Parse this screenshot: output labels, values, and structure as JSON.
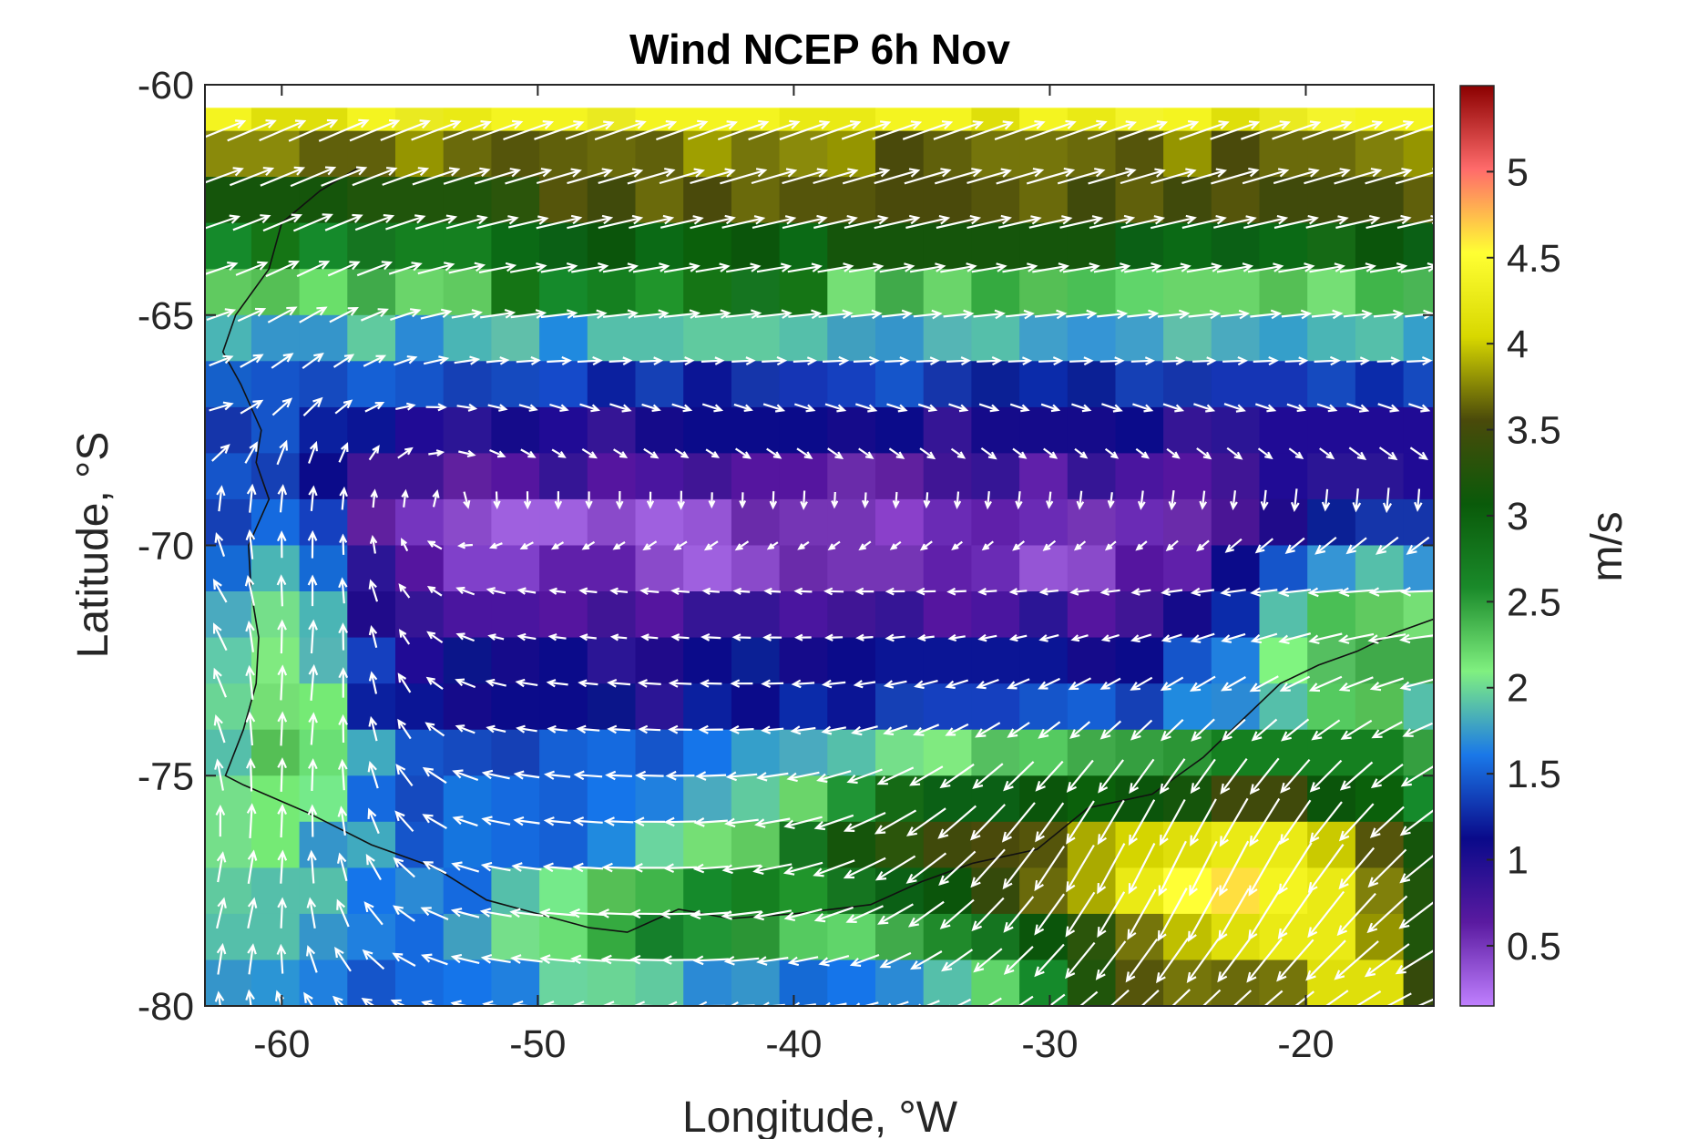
{
  "chart_data": {
    "type": "heatmap",
    "title": "Wind NCEP 6h Nov",
    "xlabel": "Longitude, °W",
    "ylabel": "Latitude, °S",
    "colorbar_label": "m/s",
    "xlim": [
      -63,
      -15
    ],
    "ylim": [
      -80,
      -60
    ],
    "xticks": [
      -60,
      -50,
      -40,
      -30,
      -20
    ],
    "yticks": [
      -60,
      -65,
      -70,
      -75,
      -80
    ],
    "colorbar_range": [
      0.15,
      5.5
    ],
    "colorbar_ticks": [
      0.5,
      1,
      1.5,
      2,
      2.5,
      3,
      3.5,
      4,
      4.5,
      5
    ],
    "grid": false,
    "colormap": [
      "#c080ff",
      "#5a1aa0",
      "#0a0a8a",
      "#1a78e8",
      "#80f080",
      "#1a8a2a",
      "#0a5a0a",
      "#4a4a0a",
      "#d8d800",
      "#ffff33",
      "#ff6b6b",
      "#8b0000"
    ],
    "regions": [
      {
        "name": "northern westerly band -61 to -62 lat",
        "speed": 4.2
      },
      {
        "name": "band -62 to -64 lat",
        "speed": 3.2
      },
      {
        "name": "band -64 to -66 lat",
        "speed": 2.2
      },
      {
        "name": "band -66 to -68 lat",
        "speed": 1.3
      },
      {
        "name": "central low-wind zone -68 to -72 lat",
        "speed": 0.5
      },
      {
        "name": "easterly band -72 to -75 lat",
        "speed": 1.2
      },
      {
        "name": "southeast coast -75 to -80 lat, -30 to -15 lon",
        "speed": 4.5
      },
      {
        "name": "western coastal jet -68 to -80 lat, -63 to -55 lon",
        "speed": 2.0
      }
    ]
  }
}
